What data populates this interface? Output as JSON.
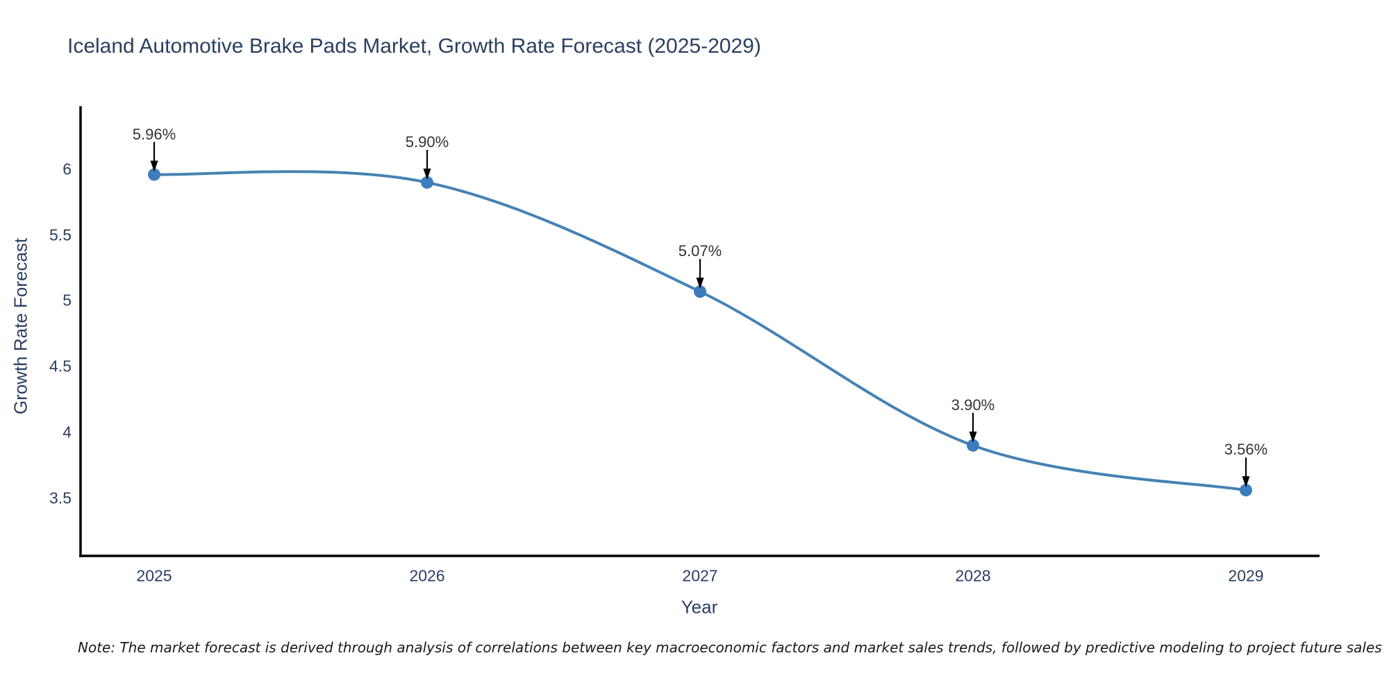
{
  "title": "Iceland Automotive Brake Pads Market, Growth Rate Forecast (2025-2029)",
  "note": "Note: The market forecast is derived through analysis of correlations between key macroeconomic factors and market sales trends, followed by predictive modeling to project future sales",
  "chart_data": {
    "type": "line",
    "title": "Iceland Automotive Brake Pads Market, Growth Rate Forecast (2025-2029)",
    "xlabel": "Year",
    "ylabel": "Growth Rate Forecast",
    "categories": [
      "2025",
      "2026",
      "2027",
      "2028",
      "2029"
    ],
    "values": [
      5.96,
      5.9,
      5.07,
      3.9,
      3.56
    ],
    "point_labels": [
      "5.96%",
      "5.90%",
      "5.07%",
      "3.90%",
      "3.56%"
    ],
    "yticks": [
      3.5,
      4,
      4.5,
      5,
      5.5,
      6
    ],
    "ylim": [
      3.06,
      6.48
    ],
    "line_shape": "spline",
    "grid": false,
    "legend": "none",
    "colors": {
      "line": "#4682b4",
      "marker": "#3d7dbd",
      "axis_line": "#000000",
      "arrow": "#000000",
      "title_text": "#2a3f5f",
      "axis_text": "#2a3f5f",
      "annotation_text": "#333333"
    }
  }
}
